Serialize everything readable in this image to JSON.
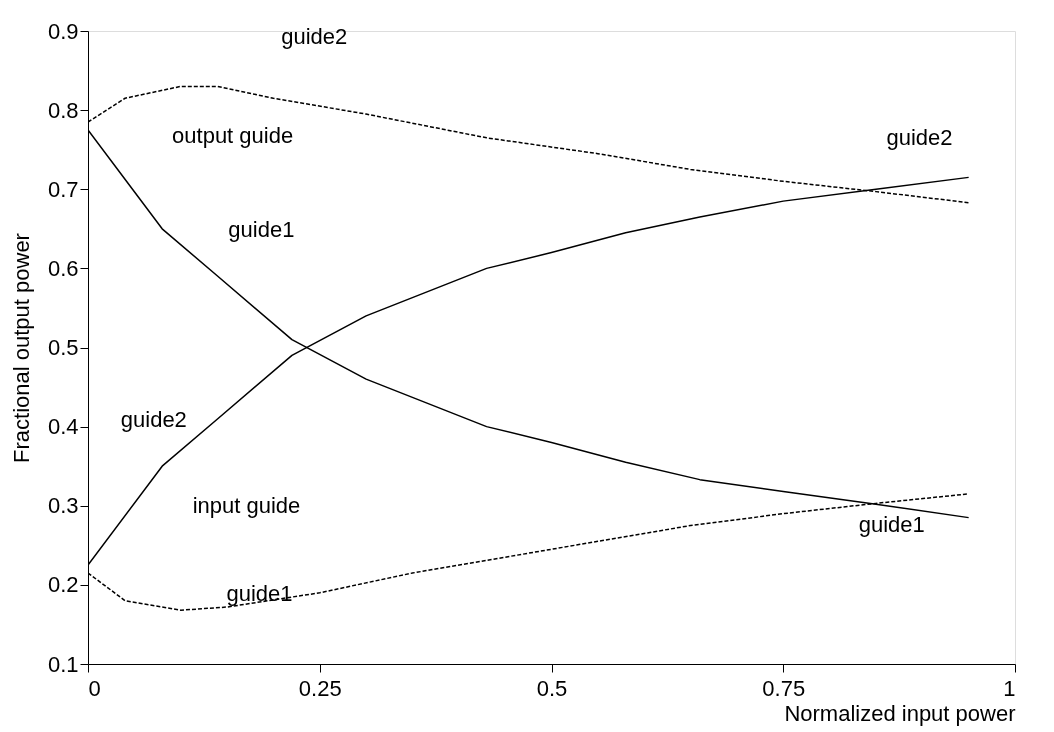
{
  "chart_data": {
    "type": "line",
    "xlabel": "Normalized input power",
    "ylabel": "Fractional output power",
    "xlim": [
      0,
      1
    ],
    "ylim": [
      0.1,
      0.9
    ],
    "xticks": [
      0,
      0.25,
      0.5,
      0.75,
      1
    ],
    "yticks": [
      0.1,
      0.2,
      0.3,
      0.4,
      0.5,
      0.6,
      0.7,
      0.8,
      0.9
    ],
    "grid": false,
    "marker": "none",
    "series": [
      {
        "color": "#000000",
        "line_style": "solid",
        "x": [
          0,
          0.08,
          0.14,
          0.22,
          0.3,
          0.43,
          0.5,
          0.58,
          0.66,
          0.75,
          0.85,
          0.95
        ],
        "values": [
          0.775,
          0.65,
          0.59,
          0.51,
          0.46,
          0.4,
          0.38,
          0.355,
          0.333,
          0.318,
          0.302,
          0.285
        ]
      },
      {
        "color": "#000000",
        "line_style": "solid",
        "x": [
          0,
          0.08,
          0.14,
          0.22,
          0.3,
          0.43,
          0.5,
          0.58,
          0.66,
          0.75,
          0.85,
          0.95
        ],
        "values": [
          0.225,
          0.35,
          0.41,
          0.49,
          0.54,
          0.6,
          0.62,
          0.645,
          0.665,
          0.685,
          0.7,
          0.715
        ]
      },
      {
        "color": "#000000",
        "line_style": "dashed",
        "x": [
          0,
          0.04,
          0.1,
          0.14,
          0.2,
          0.3,
          0.43,
          0.55,
          0.65,
          0.75,
          0.85,
          0.95
        ],
        "values": [
          0.785,
          0.815,
          0.83,
          0.83,
          0.815,
          0.795,
          0.765,
          0.745,
          0.725,
          0.71,
          0.697,
          0.683
        ]
      },
      {
        "color": "#000000",
        "line_style": "dashed",
        "x": [
          0,
          0.04,
          0.1,
          0.15,
          0.25,
          0.35,
          0.45,
          0.55,
          0.65,
          0.75,
          0.85,
          0.95
        ],
        "values": [
          0.215,
          0.18,
          0.168,
          0.172,
          0.19,
          0.215,
          0.235,
          0.255,
          0.275,
          0.29,
          0.303,
          0.315
        ]
      }
    ],
    "annotations": [
      "guide2",
      "output guide",
      "guide1",
      "guide2",
      "input guide",
      "guide1",
      "guide2",
      "guide1"
    ]
  }
}
